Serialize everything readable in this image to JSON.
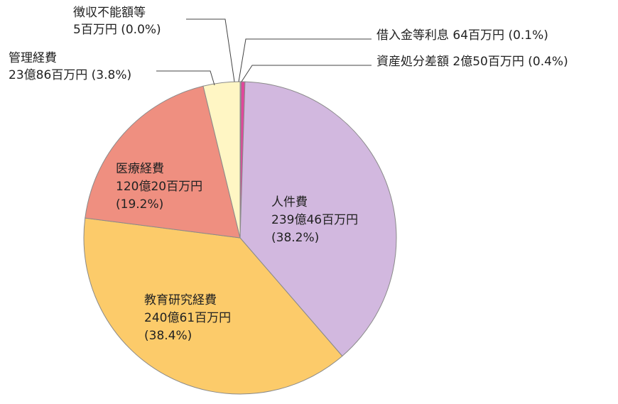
{
  "chart_data": {
    "type": "pie",
    "start_angle_deg": -90,
    "direction": "clockwise",
    "colors": {
      "stroke": "#8a8a8a",
      "leader": "#444444"
    },
    "slices": [
      {
        "key": "jinkenhi",
        "value": 38.2,
        "color": "#d2b8df",
        "label_lines": [
          "人件費",
          "239億46百万円",
          "(38.2%)"
        ]
      },
      {
        "key": "kyoiku",
        "value": 38.4,
        "color": "#fccb6a",
        "label_lines": [
          "教育研究経費",
          "240億61百万円",
          "(38.4%)"
        ]
      },
      {
        "key": "iryo",
        "value": 19.2,
        "color": "#ef8f80",
        "label_lines": [
          "医療経費",
          "120億20百万円",
          "(19.2%)"
        ]
      },
      {
        "key": "kanri",
        "value": 3.8,
        "color": "#fff6c4",
        "label_lines": [
          "管理経費",
          "23億86百万円 (3.8%)"
        ]
      },
      {
        "key": "choshu",
        "value": 0.0,
        "color": "#ffffff",
        "label_lines": [
          "徴収不能額等",
          "5百万円 (0.0%)"
        ]
      },
      {
        "key": "shakunyu",
        "value": 0.1,
        "color": "#c8b0de",
        "label_lines": [
          "借入金等利息 64百万円 (0.1%)"
        ]
      },
      {
        "key": "shisan",
        "value": 0.4,
        "color": "#e0479b",
        "label_lines": [
          "資産処分差額 2億50百万円 (0.4%)"
        ]
      }
    ]
  }
}
